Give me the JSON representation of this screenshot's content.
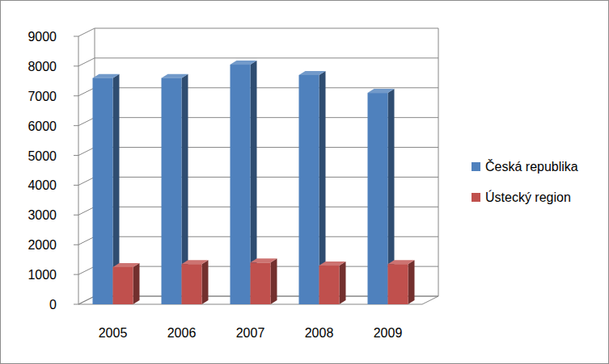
{
  "chart_data": {
    "type": "bar",
    "categories": [
      "2005",
      "2006",
      "2007",
      "2008",
      "2009"
    ],
    "series": [
      {
        "name": "Česká republika",
        "color": "#4f81bd",
        "values": [
          7600,
          7600,
          8050,
          7700,
          7100
        ]
      },
      {
        "name": "Ústecký region",
        "color": "#c0504d",
        "values": [
          1250,
          1350,
          1400,
          1300,
          1350
        ]
      }
    ],
    "ylim": [
      0,
      9000
    ],
    "yticks": [
      0,
      1000,
      2000,
      3000,
      4000,
      5000,
      6000,
      7000,
      8000,
      9000
    ],
    "grid": true,
    "legend": "right"
  }
}
